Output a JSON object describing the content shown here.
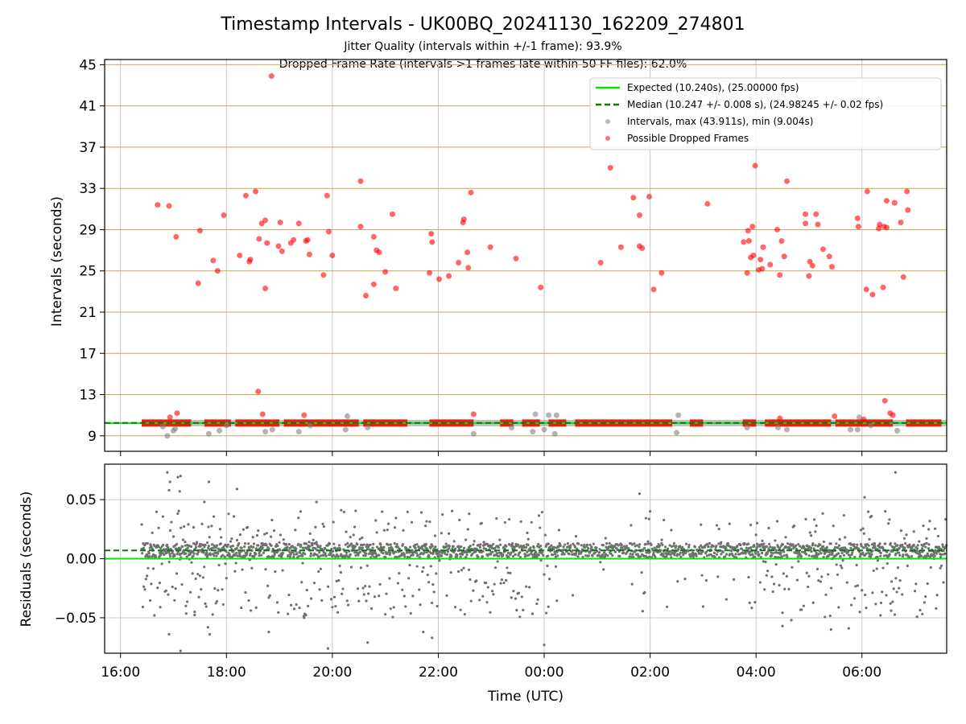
{
  "title": "Timestamp Intervals - UK00BQ_20241130_162209_274801",
  "subtitle_lines": [
    "Jitter Quality (intervals within +/-1 frame): 93.9%",
    "Dropped Frame Rate (intervals >1 frames late within 50 FF files): 62.0%"
  ],
  "colors": {
    "expected": "#00e600",
    "median": "#007f00",
    "intervals": "#808080",
    "dropped": "#ff0000",
    "hgrid_top": "#c8a850",
    "grid": "#c8c8c8",
    "residuals": "#707070"
  },
  "chart_data": [
    {
      "type": "scatter",
      "xlabel": "",
      "ylabel": "Intervals (seconds)",
      "x_range": [
        "2024-11-30 15:42",
        "2024-12-01 07:36"
      ],
      "ylim": [
        7.5,
        45.5
      ],
      "yticks": [
        9,
        13,
        17,
        21,
        25,
        29,
        33,
        37,
        41,
        45
      ],
      "grid": true,
      "legend_position": "top-right",
      "legend": [
        "Expected (10.240s), (25.00000 fps)",
        "Median (10.247 +/- 0.008 s), (24.98245 +/- 0.02 fps)",
        "Intervals, max (43.911s), min (9.004s)",
        "Possible Dropped Frames"
      ],
      "expected_line": 10.24,
      "median_line": 10.247,
      "baseline_segments": [
        [
          "2024-11-30 16:24",
          "2024-11-30 16:50"
        ],
        [
          "2024-11-30 16:50",
          "2024-11-30 17:20"
        ],
        [
          "2024-11-30 17:35",
          "2024-11-30 18:05"
        ],
        [
          "2024-11-30 18:10",
          "2024-11-30 19:00"
        ],
        [
          "2024-11-30 19:05",
          "2024-11-30 20:30"
        ],
        [
          "2024-11-30 20:35",
          "2024-11-30 21:25"
        ],
        [
          "2024-11-30 21:50",
          "2024-11-30 22:40"
        ],
        [
          "2024-11-30 23:10",
          "2024-11-30 23:25"
        ],
        [
          "2024-11-30 23:35",
          "2024-11-30 23:55"
        ],
        [
          "2024-12-01 00:05",
          "2024-12-01 00:25"
        ],
        [
          "2024-12-01 00:35",
          "2024-12-01 01:05"
        ],
        [
          "2024-12-01 01:05",
          "2024-12-01 02:25"
        ],
        [
          "2024-12-01 02:45",
          "2024-12-01 03:00"
        ],
        [
          "2024-12-01 03:45",
          "2024-12-01 04:00"
        ],
        [
          "2024-12-01 04:10",
          "2024-12-01 05:25"
        ],
        [
          "2024-12-01 05:30",
          "2024-12-01 06:35"
        ],
        [
          "2024-12-01 06:50",
          "2024-12-01 07:30"
        ]
      ],
      "dropped_frames": [
        [
          "2024-11-30 16:42",
          31.4
        ],
        [
          "2024-11-30 16:55",
          31.3
        ],
        [
          "2024-11-30 17:03",
          28.3
        ],
        [
          "2024-11-30 17:28",
          23.8
        ],
        [
          "2024-11-30 17:30",
          28.9
        ],
        [
          "2024-11-30 17:45",
          26.0
        ],
        [
          "2024-11-30 17:50",
          25.0
        ],
        [
          "2024-11-30 17:57",
          30.4
        ],
        [
          "2024-11-30 18:15",
          26.5
        ],
        [
          "2024-11-30 18:22",
          32.3
        ],
        [
          "2024-11-30 18:26",
          25.9
        ],
        [
          "2024-11-30 18:27",
          26.1
        ],
        [
          "2024-11-30 18:33",
          32.7
        ],
        [
          "2024-11-30 18:37",
          28.1
        ],
        [
          "2024-11-30 18:40",
          29.6
        ],
        [
          "2024-11-30 18:44",
          29.9
        ],
        [
          "2024-11-30 18:44",
          23.3
        ],
        [
          "2024-11-30 18:46",
          27.7
        ],
        [
          "2024-11-30 18:51",
          43.9
        ],
        [
          "2024-11-30 18:59",
          27.4
        ],
        [
          "2024-11-30 19:01",
          29.7
        ],
        [
          "2024-11-30 19:03",
          26.9
        ],
        [
          "2024-11-30 19:13",
          27.7
        ],
        [
          "2024-11-30 19:16",
          28.0
        ],
        [
          "2024-11-30 19:22",
          29.6
        ],
        [
          "2024-11-30 19:30",
          27.9
        ],
        [
          "2024-11-30 19:32",
          28.0
        ],
        [
          "2024-11-30 19:34",
          26.6
        ],
        [
          "2024-11-30 19:50",
          24.6
        ],
        [
          "2024-11-30 19:54",
          32.3
        ],
        [
          "2024-11-30 19:56",
          28.8
        ],
        [
          "2024-11-30 20:00",
          26.5
        ],
        [
          "2024-11-30 20:32",
          33.7
        ],
        [
          "2024-11-30 20:32",
          29.3
        ],
        [
          "2024-11-30 20:38",
          22.6
        ],
        [
          "2024-11-30 20:47",
          28.3
        ],
        [
          "2024-11-30 20:47",
          23.7
        ],
        [
          "2024-11-30 20:50",
          27.0
        ],
        [
          "2024-11-30 20:53",
          26.8
        ],
        [
          "2024-11-30 21:00",
          24.9
        ],
        [
          "2024-11-30 21:08",
          30.5
        ],
        [
          "2024-11-30 21:12",
          23.3
        ],
        [
          "2024-11-30 21:50",
          24.8
        ],
        [
          "2024-11-30 21:52",
          28.6
        ],
        [
          "2024-11-30 21:53",
          27.8
        ],
        [
          "2024-11-30 22:01",
          24.2
        ],
        [
          "2024-11-30 22:12",
          24.5
        ],
        [
          "2024-11-30 22:23",
          25.8
        ],
        [
          "2024-11-30 22:28",
          29.7
        ],
        [
          "2024-11-30 22:29",
          30.0
        ],
        [
          "2024-11-30 22:33",
          26.8
        ],
        [
          "2024-11-30 22:34",
          25.3
        ],
        [
          "2024-11-30 22:37",
          32.6
        ],
        [
          "2024-11-30 22:59",
          27.3
        ],
        [
          "2024-11-30 23:28",
          26.2
        ],
        [
          "2024-11-30 23:56",
          23.4
        ],
        [
          "2024-12-01 01:04",
          25.8
        ],
        [
          "2024-12-01 01:15",
          35.0
        ],
        [
          "2024-12-01 01:27",
          27.3
        ],
        [
          "2024-12-01 01:41",
          32.1
        ],
        [
          "2024-12-01 01:48",
          30.4
        ],
        [
          "2024-12-01 01:48",
          27.4
        ],
        [
          "2024-12-01 01:51",
          27.2
        ],
        [
          "2024-12-01 01:59",
          32.2
        ],
        [
          "2024-12-01 02:04",
          23.2
        ],
        [
          "2024-12-01 02:13",
          24.8
        ],
        [
          "2024-12-01 03:05",
          31.5
        ],
        [
          "2024-12-01 03:46",
          27.8
        ],
        [
          "2024-12-01 03:50",
          24.8
        ],
        [
          "2024-12-01 03:51",
          28.9
        ],
        [
          "2024-12-01 03:52",
          27.9
        ],
        [
          "2024-12-01 03:54",
          26.3
        ],
        [
          "2024-12-01 03:56",
          29.3
        ],
        [
          "2024-12-01 03:57",
          26.5
        ],
        [
          "2024-12-01 03:59",
          35.2
        ],
        [
          "2024-12-01 04:03",
          25.1
        ],
        [
          "2024-12-01 04:05",
          26.1
        ],
        [
          "2024-12-01 04:07",
          25.2
        ],
        [
          "2024-12-01 04:08",
          27.3
        ],
        [
          "2024-12-01 04:16",
          25.6
        ],
        [
          "2024-12-01 04:24",
          29.0
        ],
        [
          "2024-12-01 04:27",
          24.6
        ],
        [
          "2024-12-01 04:29",
          27.9
        ],
        [
          "2024-12-01 04:32",
          26.4
        ],
        [
          "2024-12-01 04:35",
          33.7
        ],
        [
          "2024-12-01 04:56",
          30.5
        ],
        [
          "2024-12-01 04:56",
          29.6
        ],
        [
          "2024-12-01 05:00",
          24.5
        ],
        [
          "2024-12-01 05:01",
          25.9
        ],
        [
          "2024-12-01 05:04",
          25.5
        ],
        [
          "2024-12-01 05:08",
          30.5
        ],
        [
          "2024-12-01 05:10",
          29.5
        ],
        [
          "2024-12-01 05:16",
          27.1
        ],
        [
          "2024-12-01 05:23",
          26.4
        ],
        [
          "2024-12-01 05:26",
          25.4
        ],
        [
          "2024-12-01 05:55",
          30.1
        ],
        [
          "2024-12-01 05:56",
          29.3
        ],
        [
          "2024-12-01 06:05",
          23.2
        ],
        [
          "2024-12-01 06:06",
          32.7
        ],
        [
          "2024-12-01 06:12",
          22.7
        ],
        [
          "2024-12-01 06:19",
          29.1
        ],
        [
          "2024-12-01 06:20",
          29.5
        ],
        [
          "2024-12-01 06:24",
          23.4
        ],
        [
          "2024-12-01 06:25",
          29.3
        ],
        [
          "2024-12-01 06:28",
          31.8
        ],
        [
          "2024-12-01 06:28",
          29.2
        ],
        [
          "2024-12-01 06:37",
          31.6
        ],
        [
          "2024-12-01 06:44",
          29.7
        ],
        [
          "2024-12-01 06:47",
          24.4
        ],
        [
          "2024-12-01 06:51",
          32.7
        ],
        [
          "2024-12-01 06:52",
          30.9
        ],
        [
          "2024-11-30 17:04",
          11.2
        ],
        [
          "2024-11-30 18:36",
          13.3
        ],
        [
          "2024-11-30 18:41",
          11.1
        ],
        [
          "2024-11-30 19:28",
          11.0
        ],
        [
          "2024-11-30 22:40",
          11.1
        ],
        [
          "2024-12-01 06:26",
          12.4
        ],
        [
          "2024-12-01 06:32",
          11.2
        ],
        [
          "2024-12-01 06:35",
          11.0
        ],
        [
          "2024-12-01 05:29",
          10.9
        ],
        [
          "2024-12-01 06:02",
          10.6
        ],
        [
          "2024-12-01 04:27",
          10.7
        ],
        [
          "2024-11-30 16:56",
          10.8
        ]
      ],
      "intervals_off": [
        [
          "2024-11-30 16:53",
          9.0
        ],
        [
          "2024-11-30 16:48",
          9.9
        ],
        [
          "2024-11-30 17:00",
          9.5
        ],
        [
          "2024-11-30 17:02",
          9.7
        ],
        [
          "2024-11-30 17:40",
          9.2
        ],
        [
          "2024-11-30 17:52",
          9.5
        ],
        [
          "2024-11-30 18:00",
          10.0
        ],
        [
          "2024-11-30 18:44",
          9.4
        ],
        [
          "2024-11-30 18:52",
          9.6
        ],
        [
          "2024-11-30 19:22",
          9.4
        ],
        [
          "2024-11-30 19:35",
          10.0
        ],
        [
          "2024-11-30 20:15",
          9.6
        ],
        [
          "2024-11-30 20:17",
          10.9
        ],
        [
          "2024-11-30 20:40",
          9.8
        ],
        [
          "2024-11-30 22:40",
          9.2
        ],
        [
          "2024-11-30 23:23",
          9.8
        ],
        [
          "2024-11-30 23:47",
          9.4
        ],
        [
          "2024-11-30 23:50",
          11.1
        ],
        [
          "2024-12-01 00:00",
          9.6
        ],
        [
          "2024-12-01 00:05",
          11.0
        ],
        [
          "2024-12-01 00:12",
          9.2
        ],
        [
          "2024-12-01 00:14",
          11.0
        ],
        [
          "2024-12-01 02:30",
          9.3
        ],
        [
          "2024-12-01 02:32",
          11.0
        ],
        [
          "2024-12-01 03:50",
          9.8
        ],
        [
          "2024-12-01 04:25",
          9.8
        ],
        [
          "2024-12-01 04:35",
          9.6
        ],
        [
          "2024-12-01 05:47",
          9.6
        ],
        [
          "2024-12-01 05:55",
          9.6
        ],
        [
          "2024-12-01 05:57",
          10.8
        ],
        [
          "2024-12-01 06:10",
          10.0
        ],
        [
          "2024-12-01 06:40",
          9.5
        ]
      ]
    },
    {
      "type": "scatter",
      "xlabel": "Time (UTC)",
      "ylabel": "Residuals (seconds)",
      "x_range": [
        "2024-11-30 15:42",
        "2024-12-01 07:36"
      ],
      "ylim": [
        -0.08,
        0.08
      ],
      "yticks": [
        -0.05,
        0.0,
        0.05
      ],
      "ytick_labels": [
        "−0.05",
        "0.00",
        "0.05"
      ],
      "xticks": [
        "2024-11-30 16:00",
        "2024-11-30 18:00",
        "2024-11-30 20:00",
        "2024-11-30 22:00",
        "2024-12-01 00:00",
        "2024-12-01 02:00",
        "2024-12-01 04:00",
        "2024-12-01 06:00"
      ],
      "xtick_labels": [
        "16:00",
        "18:00",
        "20:00",
        "22:00",
        "00:00",
        "02:00",
        "04:00",
        "06:00"
      ],
      "expected_line": 0.0,
      "median_line": 0.007,
      "data_start": "2024-11-30 16:24",
      "data_end": "2024-12-01 07:36",
      "residuals_outliers": [
        [
          "2024-11-30 16:53",
          0.073
        ],
        [
          "2024-11-30 16:56",
          0.065
        ],
        [
          "2024-11-30 16:55",
          0.058
        ],
        [
          "2024-11-30 17:05",
          0.069
        ],
        [
          "2024-11-30 17:08",
          0.07
        ],
        [
          "2024-11-30 17:07",
          0.057
        ],
        [
          "2024-11-30 17:40",
          0.065
        ],
        [
          "2024-11-30 17:35",
          0.048
        ],
        [
          "2024-11-30 18:12",
          0.059
        ],
        [
          "2024-11-30 19:42",
          0.048
        ],
        [
          "2024-11-30 20:10",
          0.041
        ],
        [
          "2024-11-30 22:35",
          0.038
        ],
        [
          "2024-12-01 01:48",
          0.055
        ],
        [
          "2024-12-01 06:03",
          0.052
        ],
        [
          "2024-12-01 06:38",
          0.073
        ],
        [
          "2024-11-30 17:08",
          -0.078
        ],
        [
          "2024-11-30 16:55",
          -0.064
        ],
        [
          "2024-11-30 17:39",
          -0.058
        ],
        [
          "2024-11-30 17:41",
          -0.064
        ],
        [
          "2024-11-30 18:48",
          -0.062
        ],
        [
          "2024-11-30 19:55",
          -0.076
        ],
        [
          "2024-11-30 20:40",
          -0.071
        ],
        [
          "2024-11-30 21:43",
          -0.062
        ],
        [
          "2024-11-30 21:53",
          -0.067
        ],
        [
          "2024-11-30 19:28",
          -0.05
        ],
        [
          "2024-11-30 22:30",
          -0.047
        ],
        [
          "2024-12-01 00:00",
          -0.073
        ],
        [
          "2024-12-01 04:30",
          -0.057
        ],
        [
          "2024-12-01 04:40",
          -0.052
        ],
        [
          "2024-12-01 05:25",
          -0.06
        ],
        [
          "2024-12-01 05:45",
          -0.059
        ],
        [
          "2024-12-01 06:21",
          -0.048
        ],
        [
          "2024-12-01 06:33",
          -0.044
        ],
        [
          "2024-11-30 16:45",
          -0.041
        ],
        [
          "2024-11-30 17:14",
          -0.04
        ],
        [
          "2024-11-30 17:24",
          -0.045
        ]
      ]
    }
  ]
}
